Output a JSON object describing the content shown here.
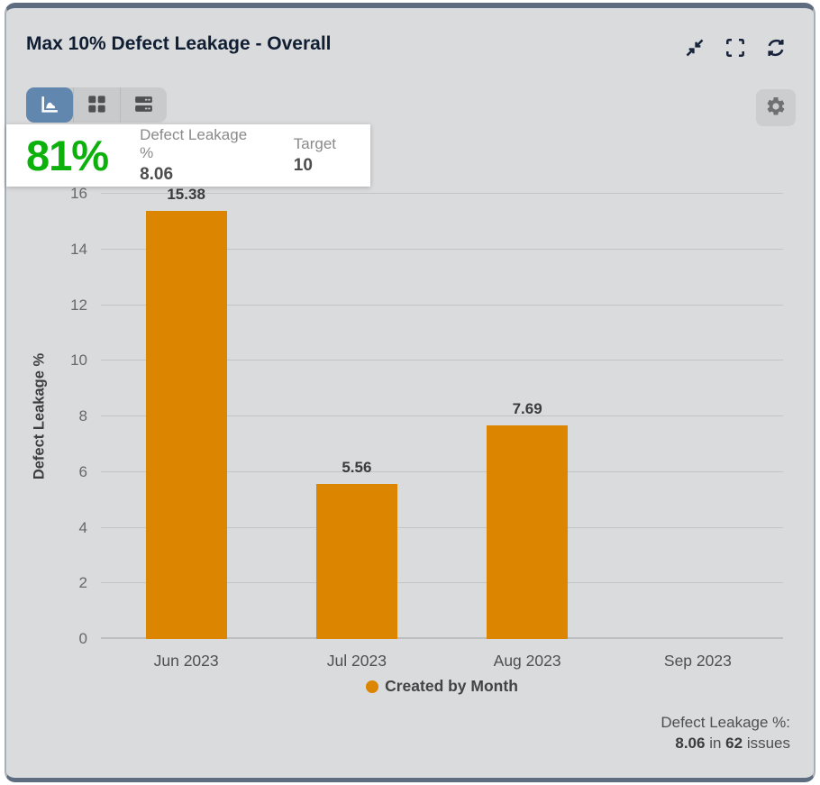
{
  "header": {
    "title": "Max 10% Defect Leakage - Overall",
    "icons": [
      "collapse",
      "fullscreen",
      "refresh"
    ]
  },
  "toolbar": {
    "views": [
      {
        "name": "chart-view",
        "icon": "area-chart-icon",
        "selected": true
      },
      {
        "name": "table-view",
        "icon": "grid-icon",
        "selected": false
      },
      {
        "name": "list-view",
        "icon": "rows-icon",
        "selected": false
      }
    ],
    "settings_icon": "gear-icon"
  },
  "kpi": {
    "score": "81%",
    "metric_label": "Defect Leakage %",
    "metric_value": "8.06",
    "target_label": "Target",
    "target_value": "10"
  },
  "chart_data": {
    "type": "bar",
    "categories": [
      "Jun 2023",
      "Jul 2023",
      "Aug 2023",
      "Sep 2023"
    ],
    "values": [
      15.38,
      5.56,
      7.69,
      null
    ],
    "value_labels": [
      "15.38",
      "5.56",
      "7.69",
      ""
    ],
    "title": "",
    "xlabel": "",
    "ylabel": "Defect Leakage %",
    "ylim": [
      0,
      16
    ],
    "ytick_step": 2,
    "grid": "horizontal",
    "bar_color": "#db8500",
    "legend": [
      {
        "label": "Created by Month",
        "color": "#db8500"
      }
    ],
    "legend_position": "bottom-center"
  },
  "footer": {
    "line1": "Defect Leakage %:",
    "value": "8.06",
    "in_word": "in",
    "count": "62",
    "issues_word": "issues"
  },
  "colors": {
    "score_green": "#0cb10c",
    "selected_view_blue": "#6187ae",
    "bar_orange": "#db8500",
    "card_background": "#dadbdc",
    "card_border_dark": "#5d6c7e"
  }
}
